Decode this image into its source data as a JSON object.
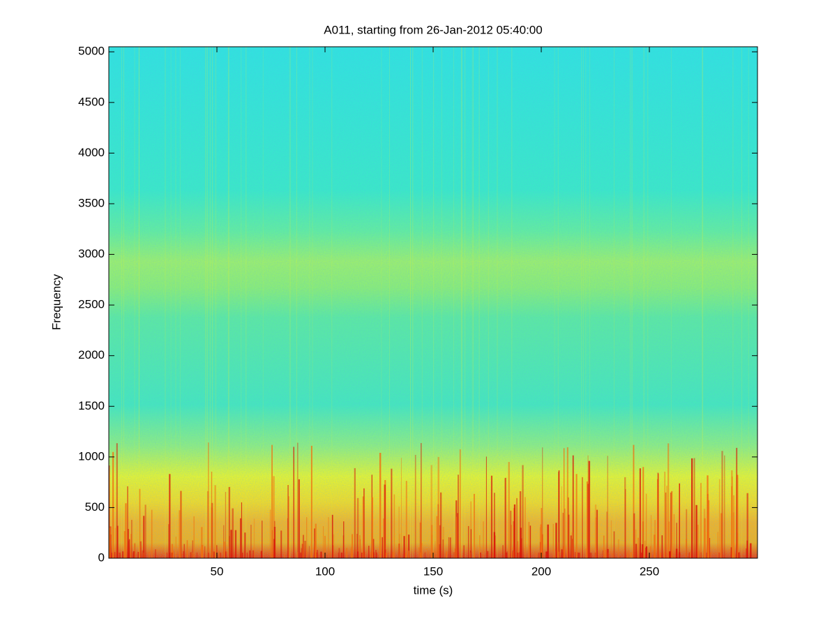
{
  "chart_data": {
    "type": "spectrogram",
    "title": "A011, starting from 26-Jan-2012 05:40:00",
    "x_label": "time (s)",
    "y_label": "Frequency",
    "xlim": [
      0,
      300
    ],
    "xticks": [
      50,
      100,
      150,
      200,
      250
    ],
    "ylim": [
      0,
      5050
    ],
    "yticks": [
      0,
      500,
      1000,
      1500,
      2000,
      2500,
      3000,
      3500,
      4000,
      4500,
      5000
    ],
    "colormap": "jet"
  }
}
